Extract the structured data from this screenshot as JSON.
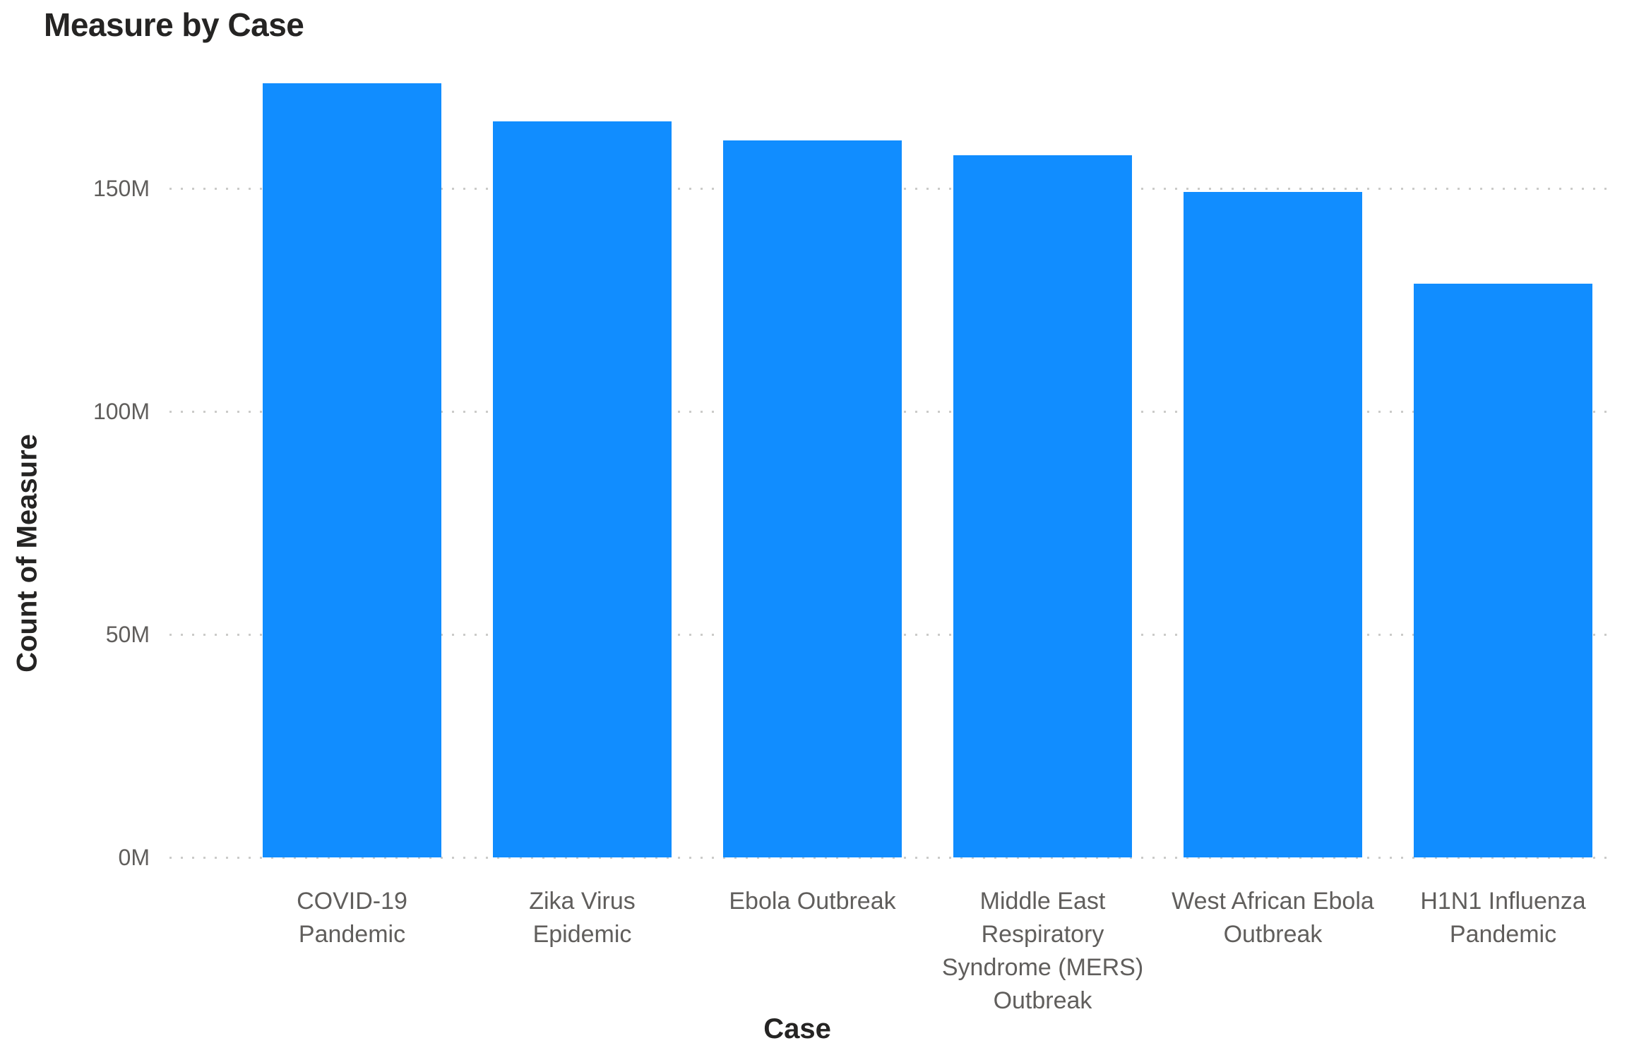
{
  "chart_data": {
    "type": "bar",
    "title": "Measure by Case",
    "xlabel": "Case",
    "ylabel": "Count of Measure",
    "categories": [
      "COVID-19 Pandemic",
      "Zika Virus Epidemic",
      "Ebola Outbreak",
      "Middle East Respiratory Syndrome (MERS) Outbreak",
      "West African Ebola Outbreak",
      "H1N1 Influenza Pandemic"
    ],
    "category_label_lines": [
      "COVID-19\nPandemic",
      "Zika Virus\nEpidemic",
      "Ebola Outbreak",
      "Middle East\nRespiratory\nSyndrome (MERS)\nOutbreak",
      "West African Ebola\nOutbreak",
      "H1N1 Influenza\nPandemic"
    ],
    "values_millions": [
      173.6,
      165.1,
      160.7,
      157.4,
      149.2,
      128.6
    ],
    "value_unit": "M",
    "yticks": [
      {
        "value": 0,
        "label": "0M"
      },
      {
        "value": 50,
        "label": "50M"
      },
      {
        "value": 100,
        "label": "100M"
      },
      {
        "value": 150,
        "label": "150M"
      }
    ],
    "ylim": [
      0,
      180
    ],
    "grid": "dotted-horizontal",
    "legend": "none",
    "bar_color": "#118DFF",
    "title_color": "#252423",
    "axis_label_color": "#605E5C"
  }
}
